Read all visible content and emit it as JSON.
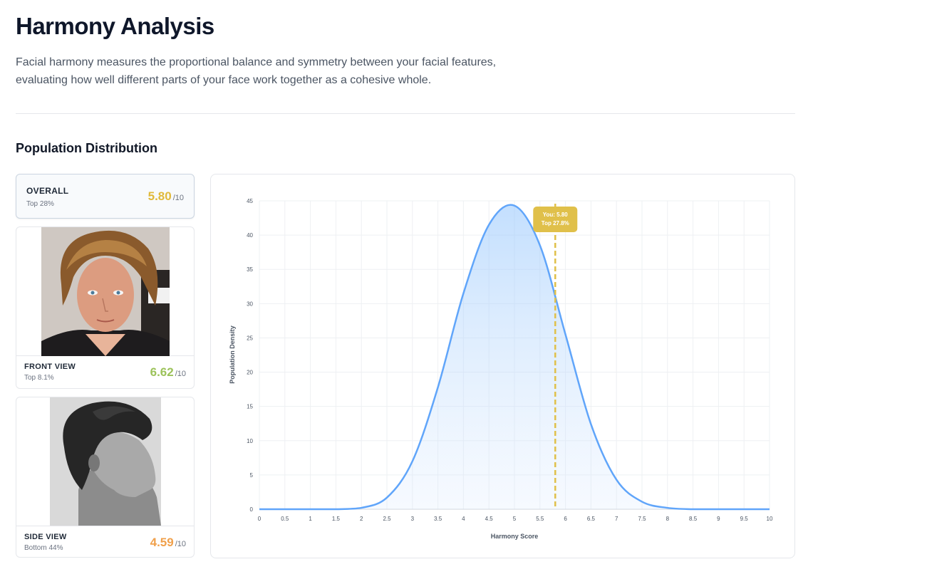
{
  "header": {
    "title": "Harmony Analysis",
    "description": "Facial harmony measures the proportional balance and symmetry between your facial features, evaluating how well different parts of your face work together as a cohesive whole."
  },
  "section_title": "Population Distribution",
  "cards": {
    "overall": {
      "label": "OVERALL",
      "sub": "Top 28%",
      "score": "5.80",
      "denom": "/10",
      "color": "#e0b93b"
    },
    "front": {
      "label": "FRONT VIEW",
      "sub": "Top 8.1%",
      "score": "6.62",
      "denom": "/10",
      "color": "#9cc25a"
    },
    "side": {
      "label": "SIDE VIEW",
      "sub": "Bottom 44%",
      "score": "4.59",
      "denom": "/10",
      "color": "#f0a04b"
    }
  },
  "chart_data": {
    "type": "area",
    "xlabel": "Harmony Score",
    "ylabel": "Population Density",
    "xlim": [
      0,
      10
    ],
    "ylim": [
      0,
      45
    ],
    "x_ticks": [
      "0",
      "0.5",
      "1",
      "1.5",
      "2",
      "2.5",
      "3",
      "3.5",
      "4",
      "4.5",
      "5",
      "5.5",
      "6",
      "6.5",
      "7",
      "7.5",
      "8",
      "8.5",
      "9",
      "9.5",
      "10"
    ],
    "y_ticks": [
      "0",
      "5",
      "10",
      "15",
      "20",
      "25",
      "30",
      "35",
      "40",
      "45"
    ],
    "grid": true,
    "series": [
      {
        "x": [
          0,
          0.5,
          1,
          1.5,
          2,
          2.5,
          3,
          3.5,
          4,
          4.5,
          5,
          5.5,
          6,
          6.5,
          7,
          7.5,
          8,
          8.5,
          9,
          9.5,
          10
        ],
        "values": [
          0,
          0,
          0,
          0,
          0.2,
          1.7,
          7.0,
          17.8,
          31.5,
          41.5,
          44.3,
          38.5,
          25.5,
          12.4,
          4.3,
          1.1,
          0.2,
          0,
          0,
          0,
          0
        ],
        "color": "#60a5fa"
      }
    ],
    "marker": {
      "x": 5.8,
      "label_line1": "You: 5.80",
      "label_line2": "Top 27.8%",
      "color": "#e0c04a"
    }
  }
}
